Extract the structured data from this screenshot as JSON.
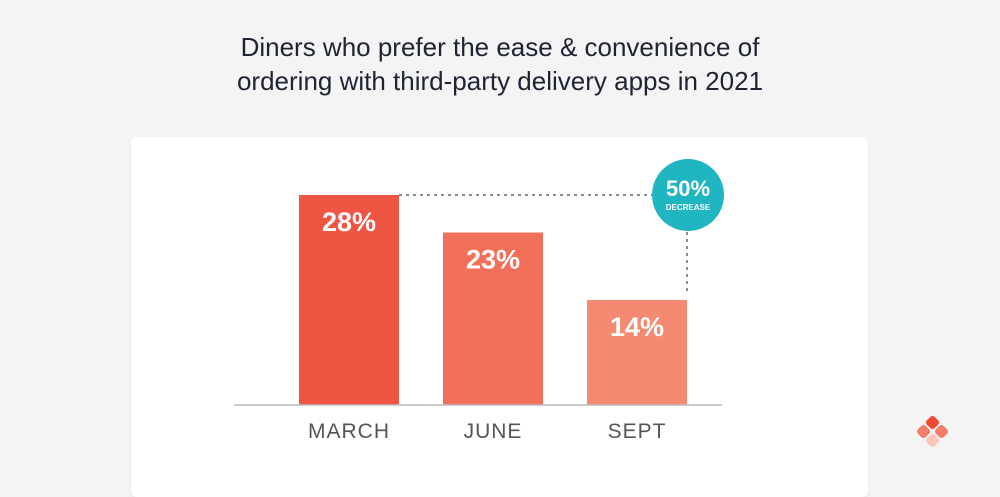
{
  "chart_data": {
    "type": "bar",
    "title": [
      "Diners who prefer the ease & convenience of",
      "ordering with third-party delivery apps in 2021"
    ],
    "categories": [
      "MARCH",
      "JUNE",
      "SEPT"
    ],
    "values": [
      28,
      23,
      14
    ],
    "value_labels": [
      "28%",
      "23%",
      "14%"
    ],
    "bar_colors": [
      "#f05442",
      "#f2705a",
      "#f48a72"
    ],
    "ylim": [
      0,
      28
    ],
    "grid": false,
    "annotation": {
      "value": "50%",
      "label": "DECREASE",
      "color": "#1fb5c1"
    }
  }
}
